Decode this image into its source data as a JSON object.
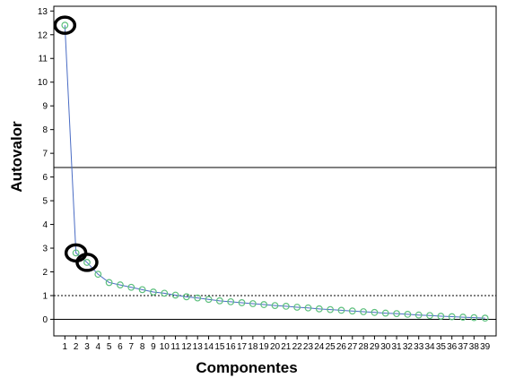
{
  "chart_data": {
    "type": "line",
    "title": "",
    "xlabel": "Componentes",
    "ylabel": "Autovalor",
    "x": [
      1,
      2,
      3,
      4,
      5,
      6,
      7,
      8,
      9,
      10,
      11,
      12,
      13,
      14,
      15,
      16,
      17,
      18,
      19,
      20,
      21,
      22,
      23,
      24,
      25,
      26,
      27,
      28,
      29,
      30,
      31,
      32,
      33,
      34,
      35,
      36,
      37,
      38,
      39
    ],
    "series": [
      {
        "values": [
          12.4,
          2.8,
          2.4,
          1.9,
          1.55,
          1.45,
          1.35,
          1.25,
          1.15,
          1.1,
          1.02,
          0.95,
          0.9,
          0.84,
          0.78,
          0.74,
          0.7,
          0.66,
          0.62,
          0.58,
          0.55,
          0.51,
          0.48,
          0.44,
          0.41,
          0.38,
          0.35,
          0.32,
          0.29,
          0.26,
          0.24,
          0.21,
          0.18,
          0.16,
          0.13,
          0.11,
          0.09,
          0.07,
          0.05
        ]
      }
    ],
    "yticks": [
      "0",
      "1",
      "2",
      "3",
      "4",
      "5",
      "6",
      "7",
      "8",
      "9",
      "10",
      "11",
      "12",
      "13"
    ],
    "ytick_values": [
      0,
      1,
      2,
      3,
      4,
      5,
      6,
      7,
      8,
      9,
      10,
      11,
      12,
      13
    ],
    "ylim": [
      -0.7,
      13.2
    ],
    "xlim": [
      0,
      40
    ],
    "reference_lines": [
      {
        "y": 1.0,
        "style": "dotted"
      },
      {
        "y": 0.0,
        "style": "solid"
      },
      {
        "y": 6.4,
        "style": "solid"
      }
    ],
    "highlighted_points": [
      1,
      2,
      3
    ],
    "grid": false,
    "line_color": "#4a6cc4",
    "marker_color": "#5cbf7c"
  }
}
